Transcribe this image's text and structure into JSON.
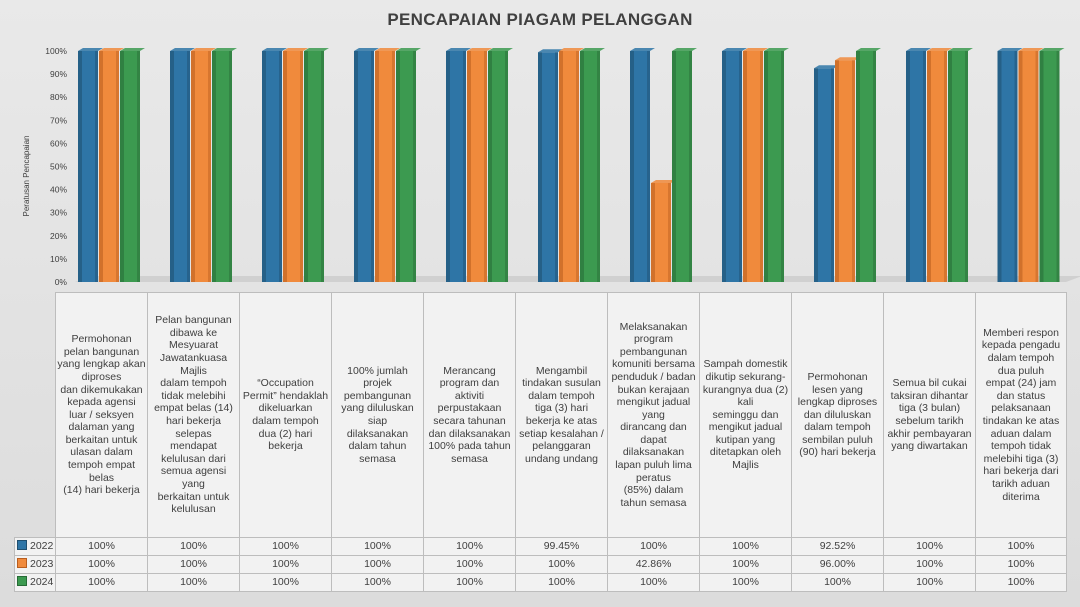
{
  "chart_data": {
    "type": "bar",
    "title": "PENCAPAIAN PIAGAM PELANGGAN",
    "ylabel": "Peratusan Pencapaian",
    "xlabel": "",
    "ylim": [
      0,
      100
    ],
    "yticks": [
      "0%",
      "10%",
      "20%",
      "30%",
      "40%",
      "50%",
      "60%",
      "70%",
      "80%",
      "90%",
      "100%"
    ],
    "categories": [
      "Permohonan pelan bangunan yang lengkap akan diproses dan dikemukakan kepada agensi luar / seksyen dalaman yang berkaitan untuk ulasan dalam tempoh empat belas (14) hari bekerja",
      "Pelan bangunan dibawa ke Mesyuarat Jawatankuasa Majlis dalam tempoh tidak melebihi empat belas (14) hari bekerja selepas mendapat kelulusan dari semua agensi yang berkaitan untuk kelulusan",
      "“Occupation Permit” hendaklah dikeluarkan dalam tempoh dua (2) hari bekerja",
      "100% jumlah projek pembangunan yang diluluskan siap dilaksanakan dalam tahun semasa",
      "Merancang program dan aktiviti perpustakaan secara tahunan dan dilaksanakan 100% pada tahun semasa",
      "Mengambil tindakan susulan dalam tempoh tiga (3) hari bekerja ke atas setiap kesalahan / pelanggaran undang undang",
      "Melaksanakan program pembangunan komuniti bersama penduduk / badan bukan kerajaan mengikut jadual yang dirancang dan dapat dilaksanakan lapan puluh lima peratus (85%) dalam tahun semasa",
      "Sampah domestik dikutip sekurang-kurangnya dua (2) kali seminggu dan mengikut jadual kutipan yang ditetapkan oleh Majlis",
      "Permohonan lesen yang lengkap diproses dan diluluskan dalam tempoh sembilan puluh (90) hari bekerja",
      "Semua bil cukai taksiran dihantar tiga (3 bulan) sebelum tarikh akhir pembayaran yang diwartakan",
      "Memberi respon kepada pengadu dalam tempoh dua puluh empat (24) jam dan status pelaksanaan tindakan ke atas aduan dalam tempoh tidak melebihi tiga (3) hari bekerja dari tarikh aduan diterima"
    ],
    "categories_display": [
      [
        "Permohonan",
        "pelan bangunan",
        "yang lengkap akan",
        "diproses",
        "dan dikemukakan",
        "kepada agensi",
        "luar / seksyen",
        "dalaman yang",
        "berkaitan untuk",
        "ulasan dalam",
        "tempoh empat",
        "belas",
        "(14) hari bekerja"
      ],
      [
        "Pelan bangunan",
        "dibawa ke",
        "Mesyuarat",
        "Jawatankuasa",
        "Majlis",
        "dalam tempoh",
        "tidak melebihi",
        "empat belas (14)",
        "hari bekerja",
        "selepas",
        "mendapat",
        "kelulusan dari",
        "semua agensi",
        "yang",
        "berkaitan untuk",
        "kelulusan"
      ],
      [
        "“Occupation",
        "Permit” hendaklah",
        "dikeluarkan",
        "dalam tempoh",
        "dua (2) hari",
        "bekerja"
      ],
      [
        "100% jumlah",
        "projek",
        "pembangunan",
        "yang diluluskan",
        "siap",
        "dilaksanakan",
        "dalam tahun",
        "semasa"
      ],
      [
        "Merancang",
        "program dan",
        "aktiviti",
        "perpustakaan",
        "secara tahunan",
        "dan dilaksanakan",
        "100% pada tahun",
        "semasa"
      ],
      [
        "Mengambil",
        "tindakan susulan",
        "dalam tempoh",
        "tiga (3) hari",
        "bekerja ke atas",
        "setiap kesalahan /",
        "pelanggaran",
        "undang undang"
      ],
      [
        "Melaksanakan",
        "program",
        "pembangunan",
        "komuniti bersama",
        "penduduk / badan",
        "bukan kerajaan",
        "mengikut jadual",
        "yang",
        "dirancang dan",
        "dapat",
        "dilaksanakan",
        "lapan puluh lima",
        "peratus",
        "(85%) dalam",
        "tahun semasa"
      ],
      [
        "Sampah domestik",
        "dikutip sekurang-",
        "kurangnya dua (2)",
        "kali",
        "seminggu dan",
        "mengikut jadual",
        "kutipan yang",
        "ditetapkan oleh",
        "Majlis"
      ],
      [
        "Permohonan",
        "lesen yang",
        "lengkap diproses",
        "dan diluluskan",
        "dalam tempoh",
        "sembilan puluh",
        "(90) hari bekerja"
      ],
      [
        "Semua bil cukai",
        "taksiran dihantar",
        "tiga (3 bulan)",
        "sebelum tarikh",
        "akhir pembayaran",
        "yang diwartakan"
      ],
      [
        "Memberi respon",
        "kepada pengadu",
        "dalam tempoh",
        "dua puluh",
        "empat (24) jam",
        "dan status",
        "pelaksanaan",
        "tindakan ke atas",
        "aduan dalam",
        "tempoh tidak",
        "melebihi tiga (3)",
        "hari bekerja dari",
        "tarikh aduan",
        "diterima"
      ]
    ],
    "series": [
      {
        "name": "2022",
        "color": "#2e75a6",
        "values": [
          100,
          100,
          100,
          100,
          100,
          99.45,
          100,
          100,
          92.52,
          100,
          100
        ],
        "labels": [
          "100%",
          "100%",
          "100%",
          "100%",
          "100%",
          "99.45%",
          "100%",
          "100%",
          "92.52%",
          "100%",
          "100%"
        ]
      },
      {
        "name": "2023",
        "color": "#f08a3c",
        "values": [
          100,
          100,
          100,
          100,
          100,
          100,
          42.86,
          100,
          96.0,
          100,
          100
        ],
        "labels": [
          "100%",
          "100%",
          "100%",
          "100%",
          "100%",
          "100%",
          "42.86%",
          "100%",
          "96.00%",
          "100%",
          "100%"
        ]
      },
      {
        "name": "2024",
        "color": "#3c9a50",
        "values": [
          100,
          100,
          100,
          100,
          100,
          100,
          100,
          100,
          100,
          100,
          100
        ],
        "labels": [
          "100%",
          "100%",
          "100%",
          "100%",
          "100%",
          "100%",
          "100%",
          "100%",
          "100%",
          "100%",
          "100%"
        ]
      }
    ],
    "colors_dark": [
      "#1f4e6e",
      "#b85d1e",
      "#276b36"
    ],
    "legend": "data-table"
  }
}
